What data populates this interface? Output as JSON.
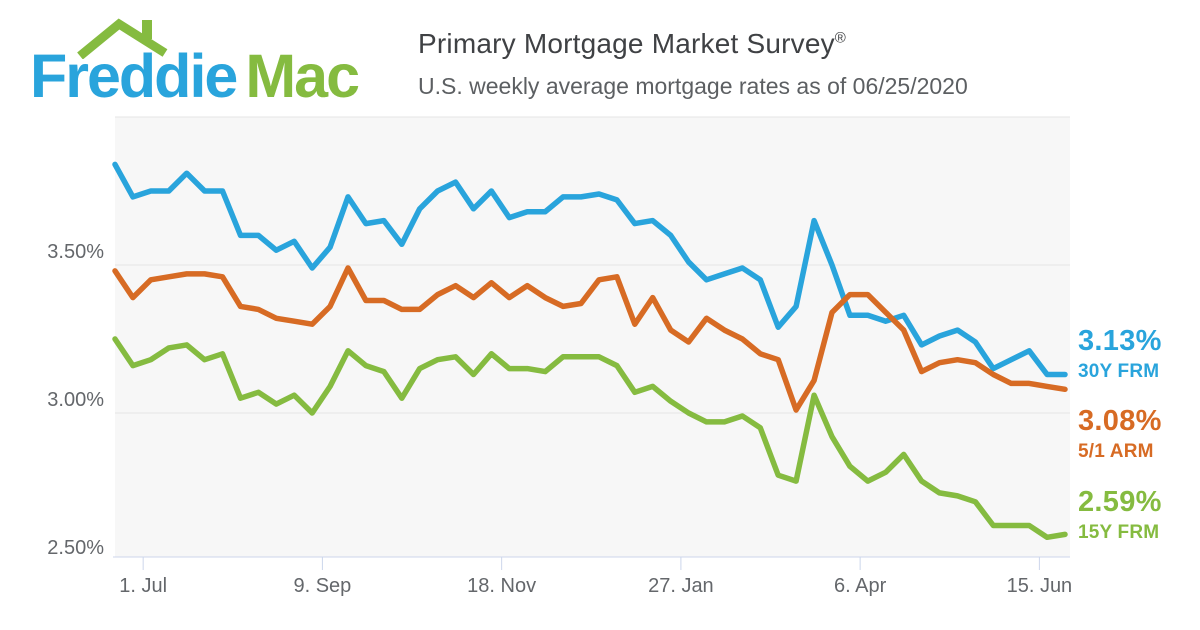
{
  "logo": {
    "freddie": "Freddie",
    "mac": "Mac"
  },
  "header": {
    "title": "Primary Mortgage Market Survey",
    "registered": "®",
    "subtitle": "U.S. weekly average mortgage rates as of 06/25/2020"
  },
  "colors": {
    "blue": "#29A4DC",
    "orange": "#D76B24",
    "green": "#85BB40",
    "plot_bg": "#f7f7f7",
    "grid": "#e5e5e5",
    "axis": "#ccd6eb",
    "axis_text": "#64676b"
  },
  "chart_data": {
    "type": "line",
    "title": "Primary Mortgage Market Survey",
    "subtitle": "U.S. weekly average mortgage rates as of 06/25/2020",
    "x_unit": "weekly observations, 2019-06-20 through 2020-06-25",
    "grid": "horizontal only",
    "legend_position": "right edge, per-series end labels",
    "x_axis": {
      "weeks_total": 53,
      "ticks": [
        {
          "label": "1. Jul",
          "week": 1.571
        },
        {
          "label": "9. Sep",
          "week": 11.571
        },
        {
          "label": "18. Nov",
          "week": 21.571
        },
        {
          "label": "27. Jan",
          "week": 31.571
        },
        {
          "label": "6. Apr",
          "week": 41.571
        },
        {
          "label": "15. Jun",
          "week": 51.571
        }
      ]
    },
    "y_axis": {
      "min": 2.51,
      "max": 4.0,
      "grid_values": [
        4.0,
        3.5,
        3.0
      ],
      "ticks": [
        {
          "label": "3.50%",
          "value": 3.5
        },
        {
          "label": "3.00%",
          "value": 3.0
        },
        {
          "label": "2.50%",
          "value": 2.5
        }
      ]
    },
    "series": [
      {
        "name": "30Y FRM",
        "end_value_label": "3.13%",
        "color": "#29A4DC",
        "values": [
          3.84,
          3.73,
          3.75,
          3.75,
          3.81,
          3.75,
          3.75,
          3.6,
          3.6,
          3.55,
          3.58,
          3.49,
          3.56,
          3.73,
          3.64,
          3.65,
          3.57,
          3.69,
          3.75,
          3.78,
          3.69,
          3.75,
          3.66,
          3.68,
          3.68,
          3.73,
          3.73,
          3.74,
          3.72,
          3.64,
          3.65,
          3.6,
          3.51,
          3.45,
          3.47,
          3.49,
          3.45,
          3.29,
          3.36,
          3.65,
          3.5,
          3.33,
          3.33,
          3.31,
          3.33,
          3.23,
          3.26,
          3.28,
          3.24,
          3.15,
          3.18,
          3.21,
          3.13,
          3.13
        ]
      },
      {
        "name": "5/1 ARM",
        "end_value_label": "3.08%",
        "color": "#D76B24",
        "values": [
          3.48,
          3.39,
          3.45,
          3.46,
          3.47,
          3.47,
          3.46,
          3.36,
          3.35,
          3.32,
          3.31,
          3.3,
          3.36,
          3.49,
          3.38,
          3.38,
          3.35,
          3.35,
          3.4,
          3.43,
          3.39,
          3.44,
          3.39,
          3.43,
          3.39,
          3.36,
          3.37,
          3.45,
          3.46,
          3.3,
          3.39,
          3.28,
          3.24,
          3.32,
          3.28,
          3.25,
          3.2,
          3.18,
          3.01,
          3.11,
          3.34,
          3.4,
          3.4,
          3.34,
          3.28,
          3.14,
          3.17,
          3.18,
          3.17,
          3.13,
          3.1,
          3.1,
          3.09,
          3.08
        ]
      },
      {
        "name": "15Y FRM",
        "end_value_label": "2.59%",
        "color": "#85BB40",
        "values": [
          3.25,
          3.16,
          3.18,
          3.22,
          3.23,
          3.18,
          3.2,
          3.05,
          3.07,
          3.03,
          3.06,
          3.0,
          3.09,
          3.21,
          3.16,
          3.14,
          3.05,
          3.15,
          3.18,
          3.19,
          3.13,
          3.2,
          3.15,
          3.15,
          3.14,
          3.19,
          3.19,
          3.19,
          3.16,
          3.07,
          3.09,
          3.04,
          3.0,
          2.97,
          2.97,
          2.99,
          2.95,
          2.79,
          2.77,
          3.06,
          2.92,
          2.82,
          2.77,
          2.8,
          2.86,
          2.77,
          2.73,
          2.72,
          2.7,
          2.62,
          2.62,
          2.62,
          2.58,
          2.59
        ]
      }
    ]
  }
}
